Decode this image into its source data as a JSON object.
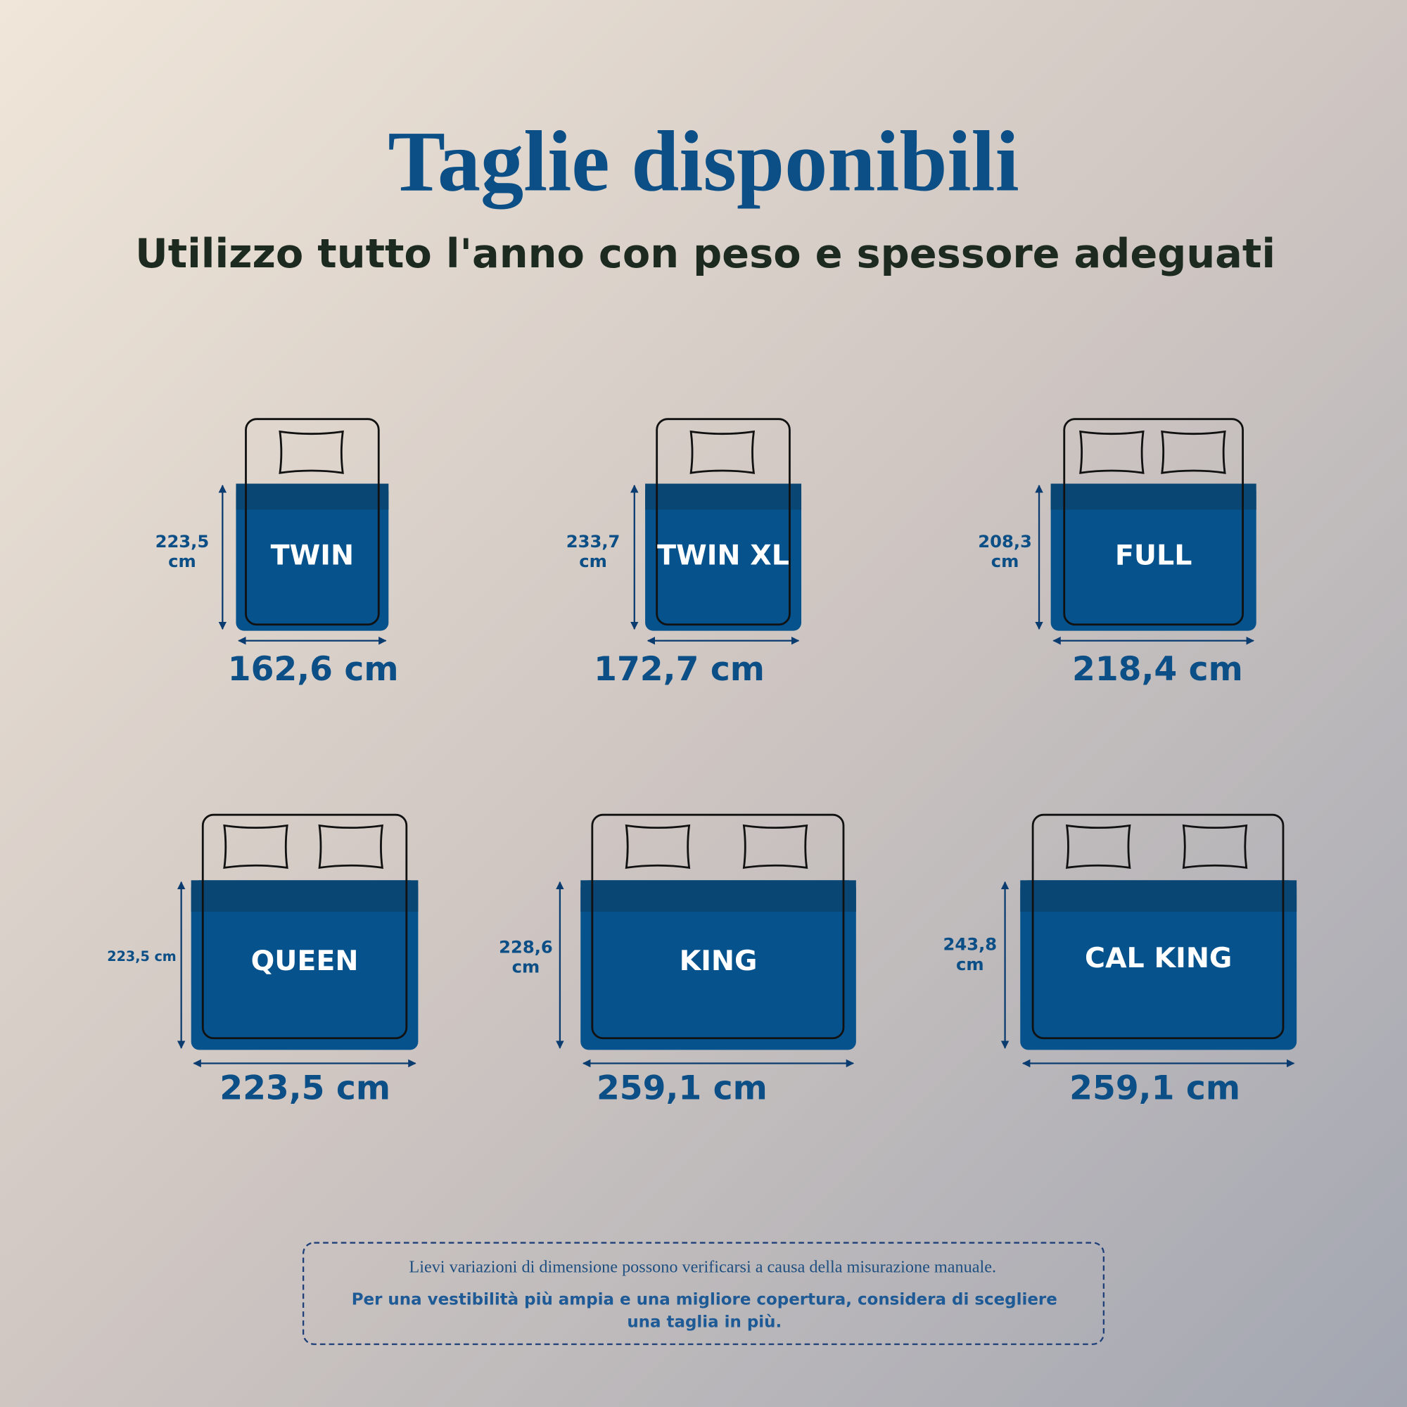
{
  "title": "Taglie disponibili",
  "subtitle": "Utilizzo tutto l'anno con peso e spessore adeguati",
  "sizes": [
    {
      "name": "TWIN",
      "height": "223,5 cm",
      "width": "162,6 cm"
    },
    {
      "name": "TWIN XL",
      "height": "233,7 cm",
      "width": "172,7 cm"
    },
    {
      "name": "FULL",
      "height": "208,3 cm",
      "width": "218,4 cm"
    },
    {
      "name": "QUEEN",
      "height": "223,5 cm",
      "width": "223,5 cm"
    },
    {
      "name": "KING",
      "height": "228,6 cm",
      "width": "259,1 cm"
    },
    {
      "name": "CAL KING",
      "height": "243,8 cm",
      "width": "259,1 cm"
    }
  ],
  "note": {
    "disclaimer": "Lievi variazioni di dimensione possono verificarsi a causa della misurazione manuale.",
    "advice": "Per una vestibilità più ampia e una migliore copertura, considera di scegliere una taglia in più."
  }
}
